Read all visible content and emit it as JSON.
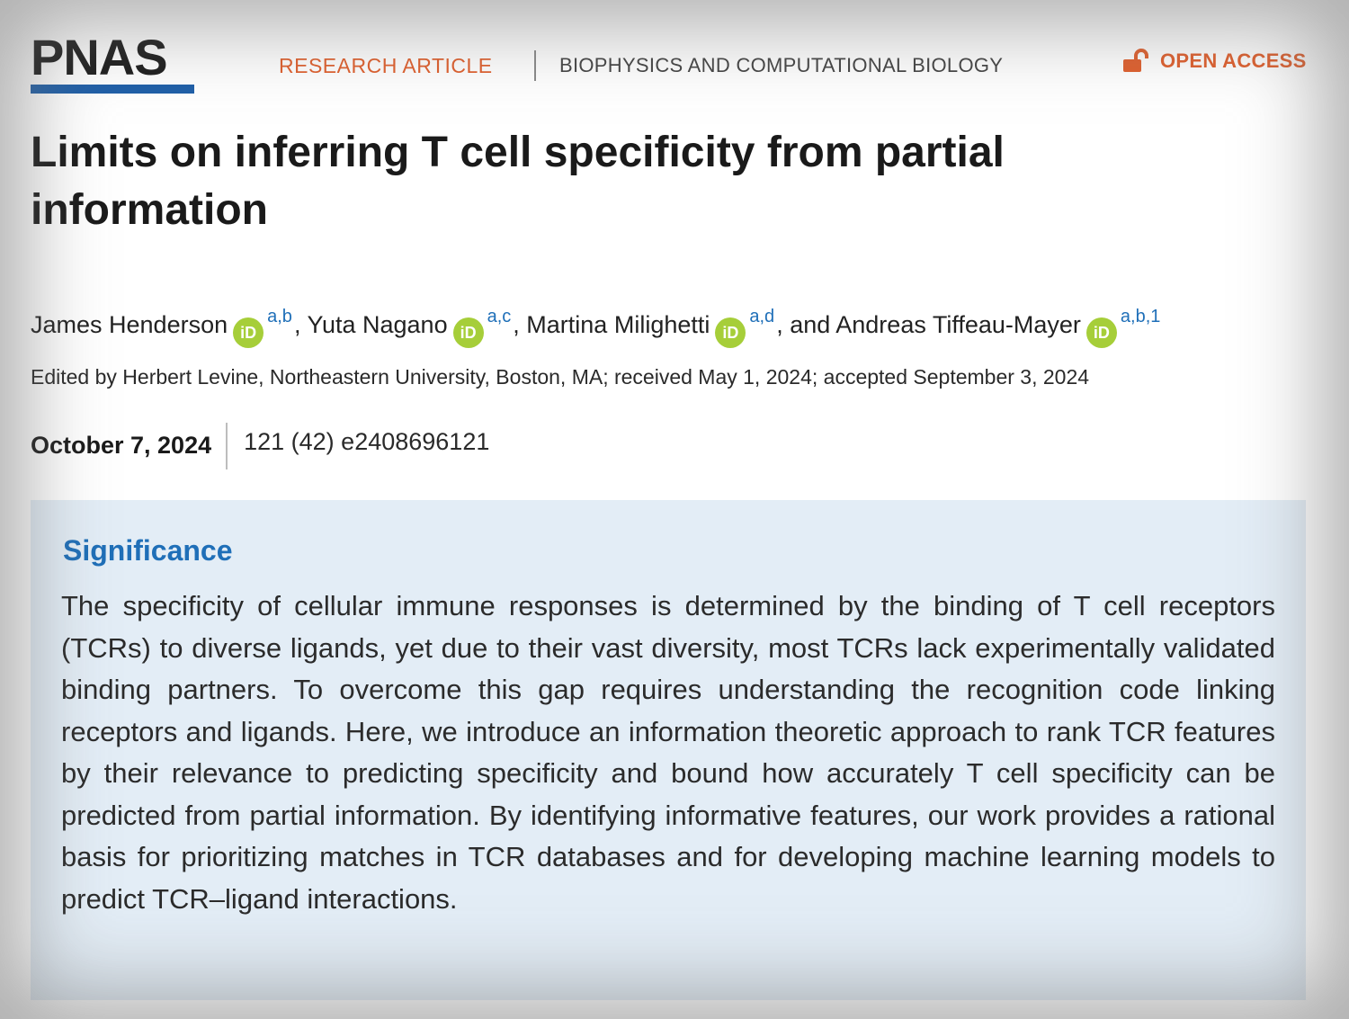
{
  "header": {
    "logo": "PNAS",
    "article_type": "RESEARCH ARTICLE",
    "subject": "BIOPHYSICS AND COMPUTATIONAL BIOLOGY",
    "open_access": "OPEN ACCESS",
    "accent_color": "#e0602e",
    "brand_color": "#1f5fa8"
  },
  "title": "Limits on inferring T cell specificity from partial information",
  "authors": [
    {
      "name": "James Henderson",
      "affiliations": "a,b",
      "separator": ", "
    },
    {
      "name": "Yuta Nagano",
      "affiliations": "a,c",
      "separator": ", "
    },
    {
      "name": "Martina Milighetti",
      "affiliations": "a,d",
      "separator": ", and "
    },
    {
      "name": "Andreas Tiffeau-Mayer",
      "affiliations": "a,b,1",
      "separator": ""
    }
  ],
  "orcid_icon_text": "iD",
  "edited_line": "Edited by Herbert Levine, Northeastern University, Boston, MA; received May 1, 2024; accepted September 3, 2024",
  "publication": {
    "date": "October 7, 2024",
    "citation": "121 (42) e2408696121"
  },
  "significance": {
    "heading": "Significance",
    "text": "The specificity of cellular immune responses is determined by the binding of T cell receptors (TCRs) to diverse ligands, yet due to their vast diversity, most TCRs lack experimentally validated binding partners. To overcome this gap requires understanding the recognition code linking receptors and ligands. Here, we introduce an information theoretic approach to rank TCR features by their relevance to predicting specificity and bound how accurately T cell specificity can be predicted from partial information. By identifying informative features, our work provides a rational basis for prioritizing matches in TCR databases and for developing machine learning models to predict TCR–ligand interactions."
  }
}
